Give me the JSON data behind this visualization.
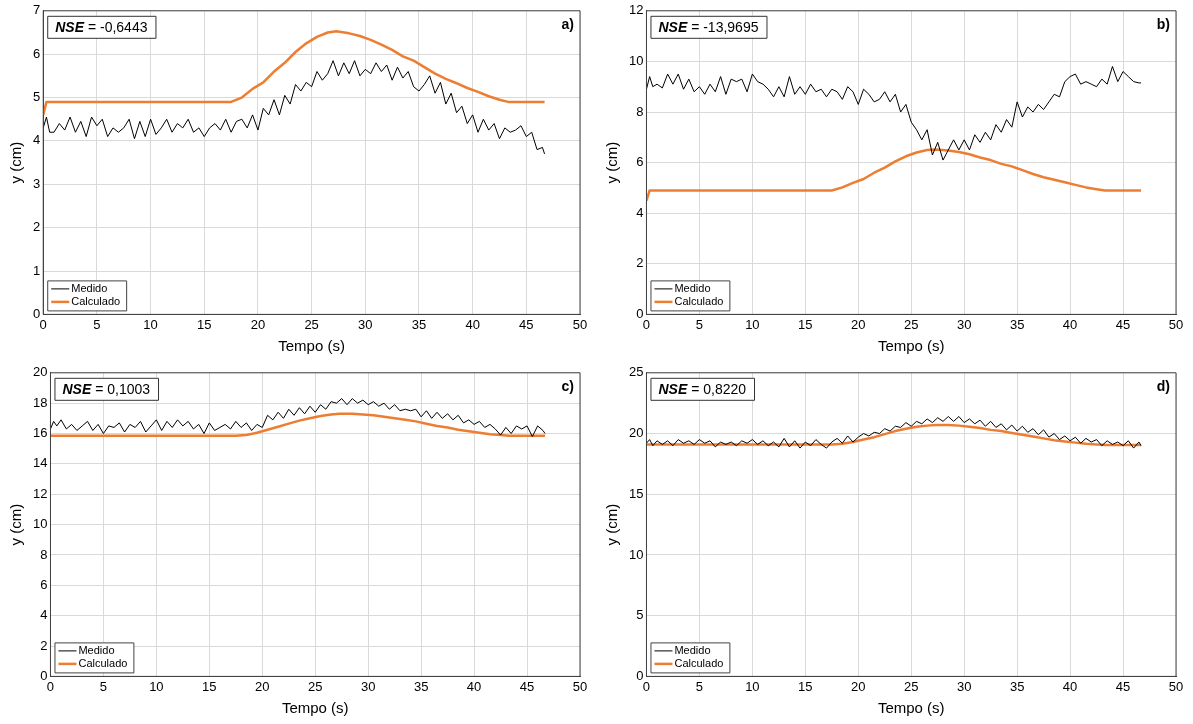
{
  "chart_data": [
    {
      "type": "line",
      "xlabel": "Tempo (s)",
      "ylabel": "y (cm)",
      "annotations": [
        "NSE = -0,6443",
        "a)"
      ],
      "xlim": [
        0,
        50
      ],
      "xticks": [
        0,
        5,
        10,
        15,
        20,
        25,
        30,
        35,
        40,
        45,
        50
      ],
      "ylim": [
        0,
        7
      ],
      "yticks": [
        0,
        1,
        2,
        3,
        4,
        5,
        6,
        7
      ],
      "grid": true,
      "legend": "bottom left",
      "marker": "none",
      "line_style": "solid",
      "series": [
        {
          "name": "Medido",
          "color": "#000000",
          "x": [
            0,
            0.3,
            0.6,
            1,
            1.5,
            2,
            2.5,
            3,
            3.5,
            4,
            4.5,
            5,
            5.5,
            6,
            6.5,
            7,
            7.5,
            8,
            8.5,
            9,
            9.5,
            10,
            10.5,
            11,
            11.5,
            12,
            12.5,
            13,
            13.5,
            14,
            14.5,
            15,
            15.5,
            16,
            16.5,
            17,
            17.5,
            18,
            18.5,
            19,
            19.5,
            20,
            20.5,
            21,
            21.5,
            22,
            22.5,
            23,
            23.5,
            24,
            24.5,
            25,
            25.5,
            26,
            26.5,
            27,
            27.5,
            28,
            28.5,
            29,
            29.5,
            30,
            30.5,
            31,
            31.5,
            32,
            32.5,
            33,
            33.5,
            34,
            34.5,
            35,
            35.5,
            36,
            36.5,
            37,
            37.5,
            38,
            38.5,
            39,
            39.5,
            40,
            40.5,
            41,
            41.5,
            42,
            42.5,
            43,
            43.5,
            44,
            44.5,
            45,
            45.5,
            46,
            46.5,
            46.7
          ],
          "values": [
            4.3,
            4.55,
            4.2,
            4.2,
            4.4,
            4.25,
            4.55,
            4.2,
            4.45,
            4.1,
            4.55,
            4.35,
            4.5,
            4.1,
            4.3,
            4.2,
            4.3,
            4.5,
            4.05,
            4.45,
            4.1,
            4.5,
            4.15,
            4.3,
            4.5,
            4.2,
            4.4,
            4.3,
            4.5,
            4.2,
            4.3,
            4.1,
            4.3,
            4.4,
            4.25,
            4.5,
            4.2,
            4.45,
            4.5,
            4.3,
            4.6,
            4.25,
            4.75,
            4.6,
            4.95,
            4.6,
            5.05,
            4.85,
            5.3,
            5.15,
            5.35,
            5.25,
            5.6,
            5.4,
            5.55,
            5.85,
            5.5,
            5.8,
            5.55,
            5.85,
            5.5,
            5.65,
            5.55,
            5.8,
            5.6,
            5.75,
            5.4,
            5.7,
            5.45,
            5.6,
            5.25,
            5.15,
            5.3,
            5.5,
            5.1,
            5.35,
            4.85,
            5.1,
            4.65,
            4.8,
            4.4,
            4.6,
            4.2,
            4.5,
            4.25,
            4.4,
            4.05,
            4.3,
            4.2,
            4.25,
            4.35,
            4.1,
            4.2,
            3.8,
            3.85,
            3.7
          ]
        },
        {
          "name": "Calculado",
          "color": "#ed7d31",
          "x": [
            0,
            0.3,
            17.5,
            18.5,
            19.5,
            20.5,
            21.5,
            22.5,
            23.5,
            24.5,
            25.5,
            26.5,
            27.3,
            28.5,
            29.5,
            30.5,
            31.5,
            32.5,
            33.5,
            34.5,
            35.5,
            36.5,
            37.5,
            38.5,
            39.5,
            40.5,
            41.5,
            42.5,
            43.3,
            46.7
          ],
          "values": [
            4.6,
            4.9,
            4.9,
            5.0,
            5.2,
            5.35,
            5.6,
            5.8,
            6.05,
            6.25,
            6.4,
            6.5,
            6.53,
            6.48,
            6.42,
            6.33,
            6.22,
            6.1,
            5.95,
            5.85,
            5.7,
            5.55,
            5.43,
            5.33,
            5.22,
            5.13,
            5.03,
            4.95,
            4.9,
            4.9
          ]
        }
      ]
    },
    {
      "type": "line",
      "xlabel": "Tempo (s)",
      "ylabel": "y (cm)",
      "annotations": [
        "NSE = -13,9695",
        "b)"
      ],
      "xlim": [
        0,
        50
      ],
      "xticks": [
        0,
        5,
        10,
        15,
        20,
        25,
        30,
        35,
        40,
        45,
        50
      ],
      "ylim": [
        0,
        12
      ],
      "yticks": [
        0,
        2,
        4,
        6,
        8,
        10,
        12
      ],
      "grid": true,
      "legend": "bottom left",
      "marker": "none",
      "line_style": "solid",
      "series": [
        {
          "name": "Medido",
          "color": "#000000",
          "x": [
            0,
            0.3,
            0.6,
            1,
            1.5,
            2,
            2.5,
            3,
            3.5,
            4,
            4.5,
            5,
            5.5,
            6,
            6.5,
            7,
            7.5,
            8,
            8.5,
            9,
            9.5,
            10,
            10.5,
            11,
            11.5,
            12,
            12.5,
            13,
            13.5,
            14,
            14.5,
            15,
            15.5,
            16,
            16.5,
            17,
            17.5,
            18,
            18.5,
            19,
            19.5,
            20,
            20.5,
            21,
            21.5,
            22,
            22.5,
            23,
            23.5,
            24,
            24.5,
            25,
            25.5,
            26,
            26.5,
            27,
            27.5,
            28,
            28.5,
            29,
            29.5,
            30,
            30.5,
            31,
            31.5,
            32,
            32.5,
            33,
            33.5,
            34,
            34.5,
            35,
            35.5,
            36,
            36.5,
            37,
            37.5,
            38,
            38.5,
            39,
            39.5,
            40,
            40.5,
            41,
            41.5,
            42,
            42.5,
            43,
            43.5,
            44,
            44.5,
            45,
            45.5,
            46,
            46.5,
            46.7
          ],
          "values": [
            8.9,
            9.4,
            9.0,
            9.1,
            8.95,
            9.5,
            9.1,
            9.5,
            8.9,
            9.3,
            8.8,
            9.0,
            8.7,
            9.1,
            8.8,
            9.4,
            8.7,
            9.3,
            9.2,
            9.3,
            8.8,
            9.5,
            9.2,
            9.1,
            8.9,
            8.6,
            9.0,
            8.6,
            9.4,
            8.7,
            9.0,
            8.7,
            9.1,
            8.8,
            8.9,
            8.6,
            8.9,
            8.8,
            8.5,
            9.0,
            8.8,
            8.3,
            8.9,
            8.7,
            8.4,
            8.5,
            8.8,
            8.4,
            8.7,
            8.0,
            8.3,
            7.6,
            7.3,
            6.9,
            7.3,
            6.3,
            6.8,
            6.1,
            6.5,
            6.9,
            6.5,
            6.9,
            6.5,
            7.1,
            6.8,
            7.2,
            6.9,
            7.5,
            7.2,
            7.7,
            7.4,
            8.4,
            7.8,
            8.2,
            8.0,
            8.3,
            8.1,
            8.4,
            8.7,
            8.6,
            9.2,
            9.4,
            9.5,
            9.1,
            9.2,
            9.1,
            9.0,
            9.3,
            9.1,
            9.8,
            9.2,
            9.6,
            9.4,
            9.2,
            9.15,
            9.15
          ]
        },
        {
          "name": "Calculado",
          "color": "#ed7d31",
          "x": [
            0,
            0.3,
            17.5,
            18.5,
            19.5,
            20.5,
            21.5,
            22.5,
            23.5,
            24.5,
            25.5,
            26.5,
            27.3,
            28.5,
            29.5,
            30.5,
            31.5,
            32.5,
            33.5,
            34.5,
            35.5,
            36.5,
            37.5,
            38.5,
            39.5,
            40.5,
            41.5,
            42.5,
            43.3,
            46.7
          ],
          "values": [
            4.5,
            4.9,
            4.9,
            5.02,
            5.2,
            5.35,
            5.6,
            5.8,
            6.05,
            6.25,
            6.4,
            6.5,
            6.52,
            6.48,
            6.42,
            6.33,
            6.2,
            6.1,
            5.95,
            5.85,
            5.7,
            5.55,
            5.42,
            5.32,
            5.22,
            5.12,
            5.02,
            4.95,
            4.9,
            4.9
          ]
        }
      ]
    },
    {
      "type": "line",
      "xlabel": "Tempo (s)",
      "ylabel": "y (cm)",
      "annotations": [
        "NSE = 0,1003",
        "c)"
      ],
      "xlim": [
        0,
        50
      ],
      "xticks": [
        0,
        5,
        10,
        15,
        20,
        25,
        30,
        35,
        40,
        45,
        50
      ],
      "ylim": [
        0,
        20
      ],
      "yticks": [
        0,
        2,
        4,
        6,
        8,
        10,
        12,
        14,
        16,
        18,
        20
      ],
      "grid": true,
      "legend": "bottom left",
      "marker": "none",
      "line_style": "solid",
      "series": [
        {
          "name": "Medido",
          "color": "#000000",
          "x": [
            0,
            0.3,
            0.6,
            1,
            1.5,
            2,
            2.5,
            3,
            3.5,
            4,
            4.5,
            5,
            5.5,
            6,
            6.5,
            7,
            7.5,
            8,
            8.5,
            9,
            9.5,
            10,
            10.5,
            11,
            11.5,
            12,
            12.5,
            13,
            13.5,
            14,
            14.5,
            15,
            15.5,
            16,
            16.5,
            17,
            17.5,
            18,
            18.5,
            19,
            19.5,
            20,
            20.5,
            21,
            21.5,
            22,
            22.5,
            23,
            23.5,
            24,
            24.5,
            25,
            25.5,
            26,
            26.5,
            27,
            27.5,
            28,
            28.5,
            29,
            29.5,
            30,
            30.5,
            31,
            31.5,
            32,
            32.5,
            33,
            33.5,
            34,
            34.5,
            35,
            35.5,
            36,
            36.5,
            37,
            37.5,
            38,
            38.5,
            39,
            39.5,
            40,
            40.5,
            41,
            41.5,
            42,
            42.5,
            43,
            43.5,
            44,
            44.5,
            45,
            45.5,
            46,
            46.5,
            46.7
          ],
          "values": [
            16.3,
            16.8,
            16.5,
            16.9,
            16.3,
            16.6,
            16.2,
            16.5,
            16.8,
            16.2,
            16.6,
            16.0,
            16.5,
            16.4,
            16.7,
            16.1,
            16.6,
            16.4,
            16.8,
            16.1,
            16.5,
            16.9,
            16.2,
            16.8,
            16.4,
            16.9,
            16.5,
            16.8,
            16.3,
            16.6,
            16.0,
            16.7,
            16.2,
            16.4,
            16.6,
            16.3,
            16.8,
            16.4,
            16.7,
            16.2,
            16.6,
            16.4,
            17.2,
            16.9,
            17.4,
            17.0,
            17.6,
            17.2,
            17.7,
            17.3,
            17.8,
            17.4,
            17.9,
            17.6,
            18.1,
            18.0,
            18.3,
            17.9,
            18.3,
            18.0,
            18.2,
            17.9,
            18.1,
            17.8,
            18.0,
            17.6,
            17.9,
            17.5,
            17.6,
            17.5,
            17.6,
            17.1,
            17.5,
            17.0,
            17.4,
            17.0,
            17.3,
            16.9,
            17.2,
            16.7,
            16.9,
            16.6,
            16.8,
            16.4,
            16.6,
            16.3,
            15.9,
            16.4,
            16.0,
            16.5,
            16.3,
            16.5,
            15.8,
            16.5,
            16.2,
            16.0
          ]
        },
        {
          "name": "Calculado",
          "color": "#ed7d31",
          "x": [
            0,
            0.3,
            17.5,
            18.5,
            19.5,
            20.5,
            21.5,
            22.5,
            23.5,
            24.5,
            25.5,
            26.5,
            27.3,
            28.5,
            29.5,
            30.5,
            31.5,
            32.5,
            33.5,
            34.5,
            35.5,
            36.5,
            37.5,
            38.5,
            39.5,
            40.5,
            41.5,
            42.5,
            43.3,
            46.7
          ],
          "values": [
            15.85,
            15.85,
            15.85,
            15.9,
            16.05,
            16.25,
            16.45,
            16.65,
            16.85,
            17.0,
            17.15,
            17.25,
            17.3,
            17.3,
            17.25,
            17.2,
            17.1,
            17.0,
            16.9,
            16.8,
            16.65,
            16.5,
            16.4,
            16.25,
            16.15,
            16.05,
            15.95,
            15.9,
            15.85,
            15.85
          ]
        }
      ]
    },
    {
      "type": "line",
      "xlabel": "Tempo (s)",
      "ylabel": "y (cm)",
      "annotations": [
        "NSE = 0,8220",
        "d)"
      ],
      "xlim": [
        0,
        50
      ],
      "xticks": [
        0,
        5,
        10,
        15,
        20,
        25,
        30,
        35,
        40,
        45,
        50
      ],
      "ylim": [
        0,
        25
      ],
      "yticks": [
        0,
        5,
        10,
        15,
        20,
        25
      ],
      "grid": true,
      "legend": "bottom left",
      "marker": "none",
      "line_style": "solid",
      "series": [
        {
          "name": "Medido",
          "color": "#000000",
          "x": [
            0,
            0.3,
            0.6,
            1,
            1.5,
            2,
            2.5,
            3,
            3.5,
            4,
            4.5,
            5,
            5.5,
            6,
            6.5,
            7,
            7.5,
            8,
            8.5,
            9,
            9.5,
            10,
            10.5,
            11,
            11.5,
            12,
            12.5,
            13,
            13.5,
            14,
            14.5,
            15,
            15.5,
            16,
            16.5,
            17,
            17.5,
            18,
            18.5,
            19,
            19.5,
            20,
            20.5,
            21,
            21.5,
            22,
            22.5,
            23,
            23.5,
            24,
            24.5,
            25,
            25.5,
            26,
            26.5,
            27,
            27.5,
            28,
            28.5,
            29,
            29.5,
            30,
            30.5,
            31,
            31.5,
            32,
            32.5,
            33,
            33.5,
            34,
            34.5,
            35,
            35.5,
            36,
            36.5,
            37,
            37.5,
            38,
            38.5,
            39,
            39.5,
            40,
            40.5,
            41,
            41.5,
            42,
            42.5,
            43,
            43.5,
            44,
            44.5,
            45,
            45.5,
            46,
            46.5,
            46.7
          ],
          "values": [
            19.2,
            19.5,
            19.0,
            19.4,
            19.1,
            19.4,
            19.0,
            19.5,
            19.2,
            19.4,
            19.1,
            19.5,
            19.2,
            19.4,
            18.9,
            19.3,
            19.1,
            19.3,
            19.0,
            19.4,
            19.2,
            19.5,
            19.1,
            19.4,
            19.0,
            19.3,
            18.9,
            19.6,
            18.9,
            19.4,
            18.8,
            19.3,
            19.0,
            19.5,
            19.1,
            18.8,
            19.3,
            19.6,
            19.2,
            19.8,
            19.3,
            19.7,
            20.0,
            19.8,
            20.1,
            20.0,
            20.4,
            20.2,
            20.6,
            20.5,
            20.9,
            20.6,
            21.0,
            20.8,
            21.2,
            20.9,
            21.3,
            21.0,
            21.4,
            21.0,
            21.4,
            20.9,
            21.2,
            20.8,
            21.1,
            20.6,
            21.0,
            20.5,
            20.8,
            20.3,
            20.7,
            20.2,
            20.6,
            20.1,
            20.4,
            19.9,
            20.3,
            19.7,
            20.0,
            19.5,
            19.8,
            19.4,
            19.7,
            19.2,
            19.6,
            19.3,
            19.5,
            19.0,
            19.4,
            19.1,
            19.3,
            19.0,
            19.4,
            18.8,
            19.3,
            19.0
          ]
        },
        {
          "name": "Calculado",
          "color": "#ed7d31",
          "x": [
            0,
            0.3,
            17.5,
            18.5,
            19.5,
            20.5,
            21.5,
            22.5,
            23.5,
            24.5,
            25.5,
            26.5,
            27.3,
            28.5,
            29.5,
            30.5,
            31.5,
            32.5,
            33.5,
            34.5,
            35.5,
            36.5,
            37.5,
            38.5,
            39.5,
            40.5,
            41.5,
            42.5,
            43.3,
            46.7
          ],
          "values": [
            19.1,
            19.1,
            19.1,
            19.15,
            19.3,
            19.5,
            19.7,
            19.95,
            20.2,
            20.4,
            20.55,
            20.65,
            20.7,
            20.7,
            20.65,
            20.55,
            20.45,
            20.3,
            20.2,
            20.05,
            19.9,
            19.75,
            19.6,
            19.45,
            19.35,
            19.25,
            19.15,
            19.1,
            19.05,
            19.05
          ]
        }
      ]
    }
  ]
}
